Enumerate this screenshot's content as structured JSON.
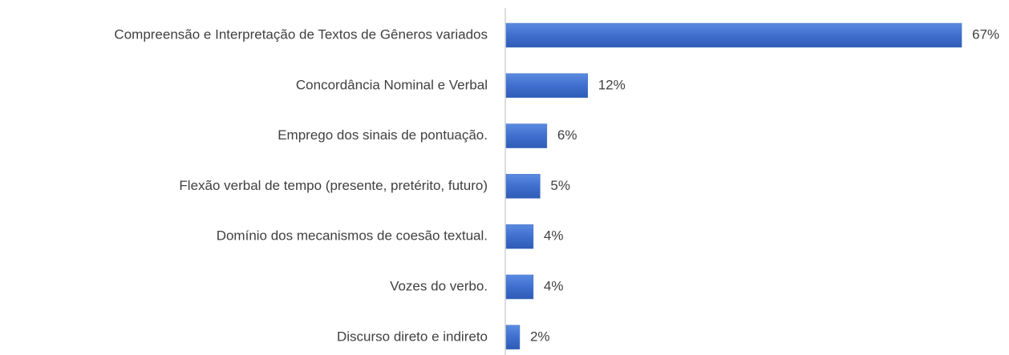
{
  "chart_data": {
    "type": "bar",
    "orientation": "horizontal",
    "categories": [
      "Compreensão e Interpretação de Textos de Gêneros variados",
      "Concordância Nominal e Verbal",
      "Emprego dos sinais de pontuação.",
      "Flexão verbal de tempo (presente, pretérito, futuro)",
      "Domínio dos mecanismos de coesão textual.",
      "Vozes do verbo.",
      "Discurso direto e indireto"
    ],
    "values": [
      67,
      12,
      6,
      5,
      4,
      4,
      2
    ],
    "value_labels": [
      "67%",
      "12%",
      "6%",
      "5%",
      "4%",
      "4%",
      "2%"
    ],
    "color": "#4472c4"
  }
}
